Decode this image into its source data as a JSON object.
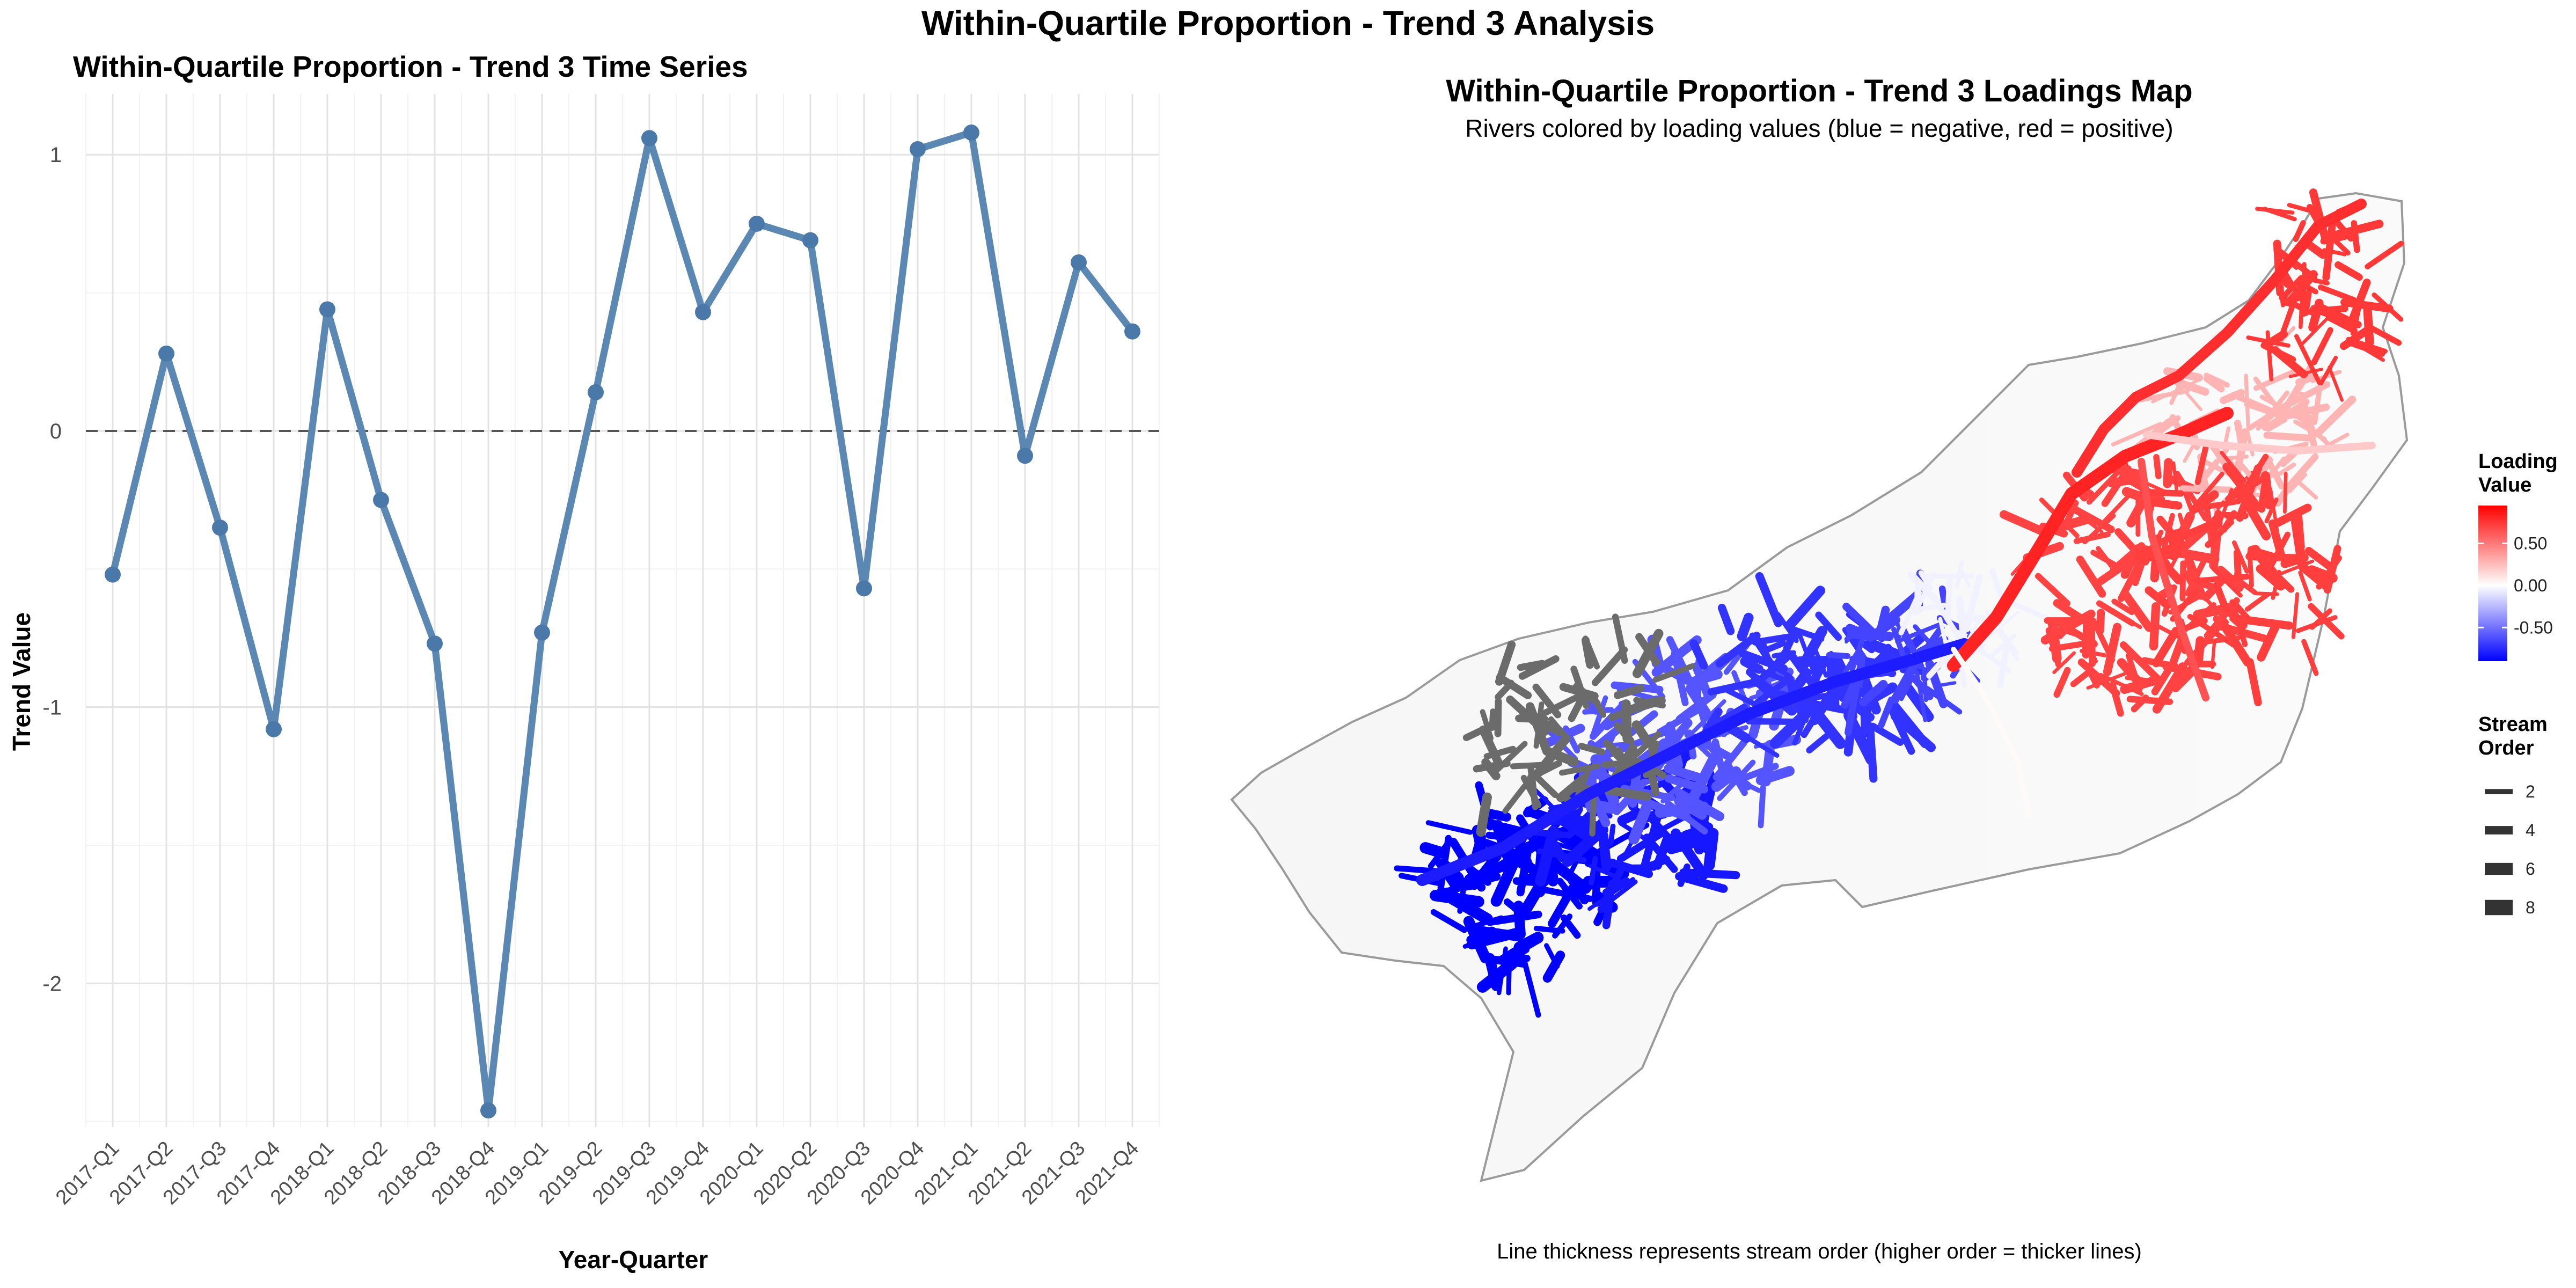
{
  "figure": {
    "title": "Within-Quartile Proportion - Trend 3 Analysis"
  },
  "chart_data": [
    {
      "type": "line",
      "title": "Within-Quartile Proportion - Trend 3 Time Series",
      "xlabel": "Year-Quarter",
      "ylabel": "Trend Value",
      "categories": [
        "2017-Q1",
        "2017-Q2",
        "2017-Q3",
        "2017-Q4",
        "2018-Q1",
        "2018-Q2",
        "2018-Q3",
        "2018-Q4",
        "2019-Q1",
        "2019-Q2",
        "2019-Q3",
        "2019-Q4",
        "2020-Q1",
        "2020-Q2",
        "2020-Q3",
        "2020-Q4",
        "2021-Q1",
        "2021-Q2",
        "2021-Q3",
        "2021-Q4"
      ],
      "series": [
        {
          "values": [
            -0.52,
            0.28,
            -0.35,
            -1.08,
            0.44,
            -0.25,
            -0.77,
            -2.46,
            -0.73,
            0.14,
            1.06,
            0.43,
            0.75,
            0.69,
            -0.57,
            1.02,
            1.08,
            -0.09,
            0.61,
            0.36
          ],
          "color": "#5b87b3"
        }
      ],
      "yticks": [
        -2,
        -1,
        0,
        1
      ],
      "ytick_labels": [
        "-2",
        "-1",
        "0",
        "1"
      ],
      "ylim": [
        -2.52,
        1.22
      ],
      "reference_line": {
        "y": 0,
        "style": "dashed"
      },
      "grid": true
    },
    {
      "type": "map",
      "title": "Within-Quartile Proportion - Trend 3 Loadings Map",
      "subtitle": "Rivers colored by loading values (blue = negative, red = positive)",
      "caption": "Line thickness represents stream order (higher order = thicker lines)",
      "legend": {
        "color": {
          "title_lines": [
            "Loading",
            "Value"
          ],
          "ticks": [
            0.5,
            0.0,
            -0.5
          ],
          "tick_labels": [
            "0.50",
            "0.00",
            "-0.50"
          ],
          "range": [
            -0.9,
            0.95
          ],
          "colors": {
            "low": "#0000ff",
            "mid": "#ffffff",
            "high": "#ff0000"
          }
        },
        "size": {
          "title_lines": [
            "Stream",
            "Order"
          ],
          "values": [
            2,
            4,
            6,
            8
          ],
          "labels": [
            "2",
            "4",
            "6",
            "8"
          ]
        }
      }
    }
  ]
}
